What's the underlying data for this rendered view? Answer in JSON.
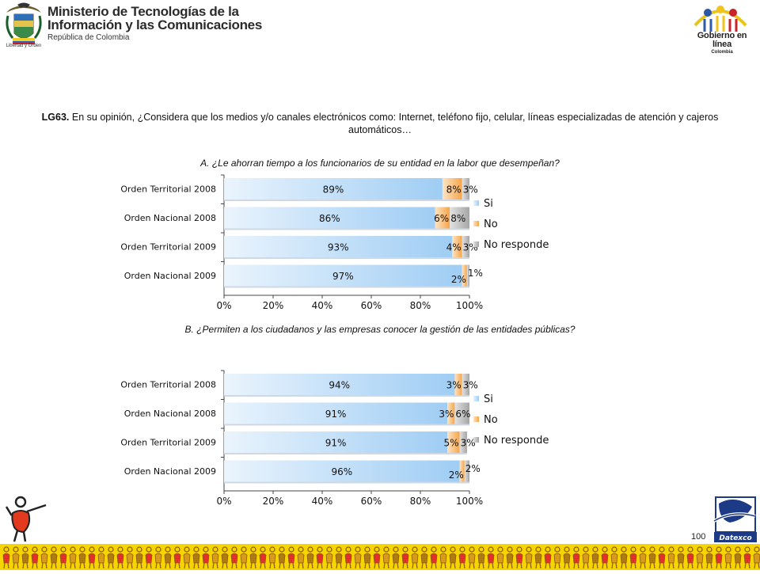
{
  "header": {
    "ministry_line1": "Ministerio de Tecnologías de la",
    "ministry_line2": "Información y las Comunicaciones",
    "ministry_line3": "República de Colombia",
    "motto": "Libertad y Orden",
    "gov_name": "Gobierno en línea",
    "gov_country": "Colombia"
  },
  "question": {
    "code": "LG63.",
    "text": " En su opinión,  ¿Considera que los medios y/o canales electrónicos como: Internet, teléfono fijo, celular, líneas especializadas de atención y cajeros automáticos…"
  },
  "subquestion_a": "A. ¿Le ahorran tiempo a los funcionarios de su entidad en la labor que desempeñan?",
  "subquestion_b": "B. ¿Permiten a los ciudadanos y las empresas conocer la gestión  de las entidades públicas?",
  "page_number": "100",
  "colors": {
    "si": "#9fcdf4",
    "no": "#f6a54a",
    "no_responde": "#a5a5a5",
    "footer_band": "#f6d400"
  },
  "chart_data": [
    {
      "type": "bar",
      "orientation": "horizontal",
      "stacked": true,
      "categories": [
        "Orden Territorial 2008",
        "Orden Nacional 2008",
        "Orden Territorial 2009",
        "Orden Nacional 2009"
      ],
      "series": [
        {
          "name": "Si",
          "values": [
            89,
            86,
            93,
            97
          ],
          "labels": [
            "89%",
            "86%",
            "93%",
            "97%"
          ]
        },
        {
          "name": "No",
          "values": [
            8,
            6,
            4,
            2
          ],
          "labels": [
            "8%",
            "6%",
            "4%",
            "2%"
          ]
        },
        {
          "name": "No responde",
          "values": [
            3,
            8,
            3,
            1
          ],
          "labels": [
            "3%",
            "8%",
            "3%",
            "1%"
          ]
        }
      ],
      "xlim": [
        0,
        100
      ],
      "ticks": [
        "0%",
        "20%",
        "40%",
        "60%",
        "80%",
        "100%"
      ],
      "legend": "right",
      "grid": false
    },
    {
      "type": "bar",
      "orientation": "horizontal",
      "stacked": true,
      "categories": [
        "Orden Territorial 2008",
        "Orden Nacional 2008",
        "Orden Territorial 2009",
        "Orden Nacional 2009"
      ],
      "series": [
        {
          "name": "Si",
          "values": [
            94,
            91,
            91,
            96
          ],
          "labels": [
            "94%",
            "91%",
            "91%",
            "96%"
          ]
        },
        {
          "name": "No",
          "values": [
            3,
            3,
            5,
            2
          ],
          "labels": [
            "3%",
            "3%",
            "5%",
            "2%"
          ]
        },
        {
          "name": "No responde",
          "values": [
            3,
            6,
            3,
            2
          ],
          "labels": [
            "3%",
            "6%",
            "3%",
            "2%"
          ]
        }
      ],
      "xlim": [
        0,
        100
      ],
      "ticks": [
        "0%",
        "20%",
        "40%",
        "60%",
        "80%",
        "100%"
      ],
      "legend": "right",
      "grid": false
    }
  ]
}
